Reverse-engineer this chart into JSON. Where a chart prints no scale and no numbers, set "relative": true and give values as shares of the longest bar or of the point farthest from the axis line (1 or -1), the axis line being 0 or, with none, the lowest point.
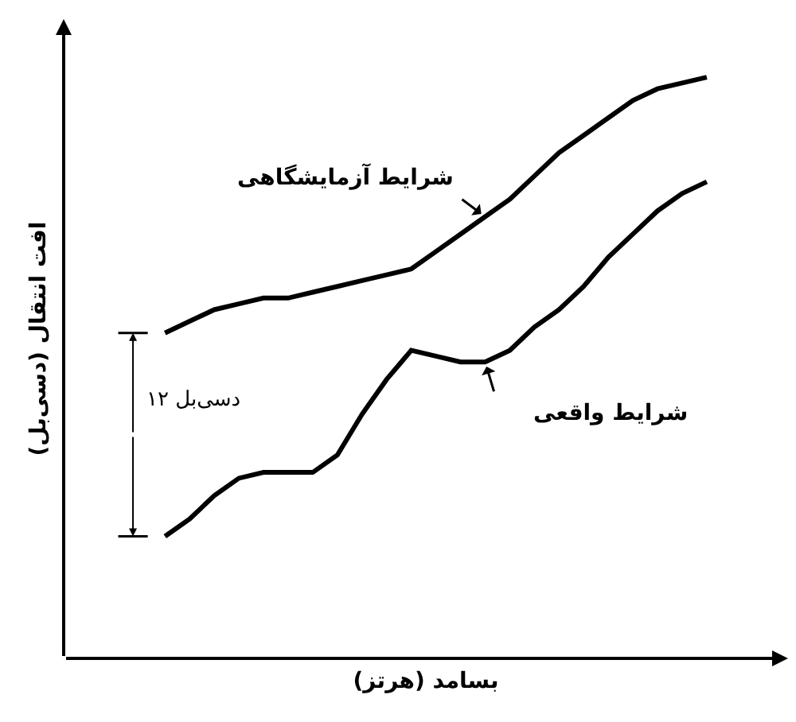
{
  "chart_data": {
    "type": "line",
    "relative": true,
    "xlabel": "بسامد (هرتز)",
    "ylabel": "افت انتقال (دسی‌بل)",
    "legend": false,
    "grid": false,
    "marker": "none",
    "line_style": "solid",
    "categories": [
      null,
      null,
      null,
      null,
      null,
      null,
      null,
      null,
      null,
      null,
      null,
      null,
      null,
      null,
      null,
      null,
      null,
      null,
      null,
      null,
      null,
      null,
      null
    ],
    "series": [
      {
        "name": "شرایط آزمایشگاهی",
        "color": "#000000",
        "values": [
          0.56,
          0.58,
          0.6,
          0.61,
          0.62,
          0.62,
          0.63,
          0.64,
          0.65,
          0.66,
          0.67,
          0.7,
          0.73,
          0.76,
          0.79,
          0.83,
          0.87,
          0.9,
          0.93,
          0.96,
          0.98,
          0.99,
          1
        ]
      },
      {
        "name": "شرایط واقعی",
        "color": "#000000",
        "values": [
          0.21,
          0.24,
          0.28,
          0.31,
          0.32,
          0.32,
          0.32,
          0.35,
          0.42,
          0.48,
          0.53,
          0.52,
          0.51,
          0.51,
          0.53,
          0.57,
          0.6,
          0.64,
          0.69,
          0.73,
          0.77,
          0.8,
          0.82
        ]
      }
    ],
    "annotations": [
      "۱۲ دسی‌بل"
    ]
  }
}
